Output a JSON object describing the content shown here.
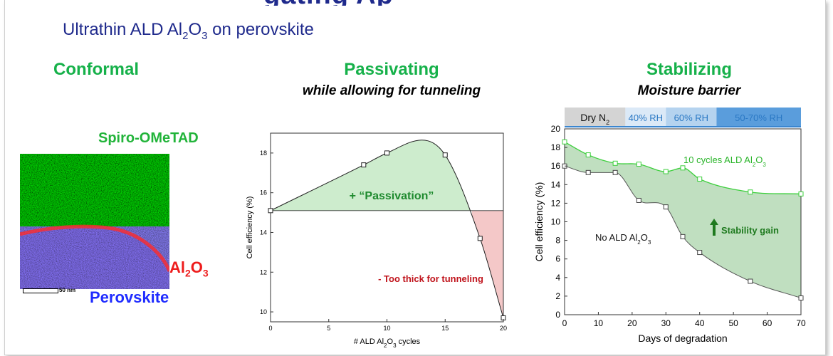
{
  "slide": {
    "top_title_fragment": "gating Ap",
    "subtitle": {
      "pre": "Ultrathin ALD Al",
      "sub1": "2",
      "mid": "O",
      "sub2": "3",
      "post": " on perovskite"
    }
  },
  "columns": {
    "conformal": {
      "heading": "Conformal"
    },
    "passivating": {
      "heading": "Passivating",
      "subheading": "while allowing for tunneling"
    },
    "stabilizing": {
      "heading": "Stabilizing",
      "subheading": "Moisture barrier"
    }
  },
  "tem": {
    "label_top": "Spiro-OMeTAD",
    "label_al": "Al",
    "label_al_sub1": "2",
    "label_al_o": "O",
    "label_al_sub2": "3",
    "label_bottom": "Perovskite",
    "scale": "50 nm",
    "colors": {
      "spiro": "#22c43c",
      "al2o3": "#ff2a2a",
      "perovskite": "#1e2cff"
    }
  },
  "chart_data": [
    {
      "type": "line",
      "xlabel": "# ALD Al2O3 cycles",
      "ylabel": "Cell efficiency (%)",
      "xlim": [
        0,
        20
      ],
      "ylim": [
        9.5,
        19
      ],
      "xticks": [
        0,
        5,
        10,
        15,
        20
      ],
      "yticks": [
        10,
        12,
        14,
        16,
        18
      ],
      "baseline": 15.1,
      "points": [
        {
          "x": 0,
          "y": 15.1
        },
        {
          "x": 8,
          "y": 17.4
        },
        {
          "x": 10,
          "y": 18.0
        },
        {
          "x": 15,
          "y": 17.9
        },
        {
          "x": 18,
          "y": 13.7
        },
        {
          "x": 20,
          "y": 9.7
        }
      ],
      "annotations": {
        "passivation": "+ “Passivation”",
        "too_thick": "- Too thick for tunneling"
      },
      "colors": {
        "gain_fill": "#cdeccd",
        "loss_fill": "#f4c8c8",
        "line": "#222222",
        "passivation_text": "#1e8a2e",
        "too_thick_text": "#c0141c"
      }
    },
    {
      "type": "line",
      "xlabel": "Days of degradation",
      "ylabel": "Cell efficiency (%)",
      "xlim": [
        0,
        70
      ],
      "ylim": [
        0,
        20
      ],
      "xticks": [
        0,
        10,
        20,
        30,
        40,
        50,
        60,
        70
      ],
      "yticks": [
        0,
        2,
        4,
        6,
        8,
        10,
        12,
        14,
        16,
        18,
        20
      ],
      "series": [
        {
          "name": "10 cycles ALD Al2O3",
          "color": "#3ccf3c",
          "points": [
            [
              0,
              18.6
            ],
            [
              7,
              17.2
            ],
            [
              15,
              16.3
            ],
            [
              22,
              16.2
            ],
            [
              30,
              15.4
            ],
            [
              35,
              15.8
            ],
            [
              40,
              14.6
            ],
            [
              55,
              13.2
            ],
            [
              70,
              13.0
            ]
          ]
        },
        {
          "name": "No ALD Al2O3",
          "color": "#555555",
          "points": [
            [
              0,
              16.0
            ],
            [
              7,
              15.3
            ],
            [
              15,
              15.3
            ],
            [
              22,
              12.3
            ],
            [
              30,
              11.6
            ],
            [
              35,
              8.4
            ],
            [
              40,
              6.7
            ],
            [
              55,
              3.6
            ],
            [
              70,
              1.8
            ]
          ]
        }
      ],
      "conditions": [
        {
          "label": "Dry N",
          "sub": "2",
          "x_start": 0,
          "x_end": 18
        },
        {
          "label": "40% RH",
          "sub": "",
          "x_start": 18,
          "x_end": 30
        },
        {
          "label": "60% RH",
          "sub": "",
          "x_start": 30,
          "x_end": 45
        },
        {
          "label": "50-70% RH",
          "sub": "",
          "x_start": 45,
          "x_end": 70
        }
      ],
      "annotations": {
        "series1_label": "10 cycles ALD Al",
        "series2_label": "No ALD Al",
        "stability_gain": "Stability gain"
      },
      "colors": {
        "fill": "#b5d9b5",
        "arrow": "#1f7a1f"
      }
    }
  ]
}
